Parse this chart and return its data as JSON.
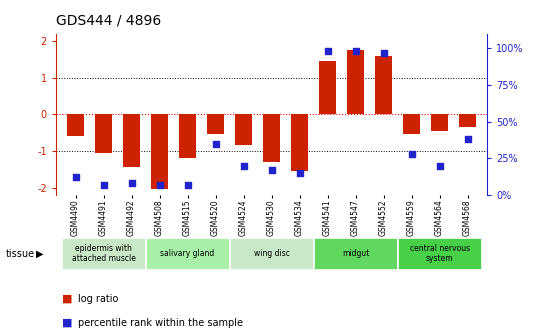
{
  "title": "GDS444 / 4896",
  "categories": [
    "GSM4490",
    "GSM4491",
    "GSM4492",
    "GSM4508",
    "GSM4515",
    "GSM4520",
    "GSM4524",
    "GSM4530",
    "GSM4534",
    "GSM4541",
    "GSM4547",
    "GSM4552",
    "GSM4559",
    "GSM4564",
    "GSM4568"
  ],
  "log_ratio": [
    -0.6,
    -1.05,
    -1.45,
    -2.05,
    -1.2,
    -0.55,
    -0.85,
    -1.3,
    -1.55,
    1.45,
    1.75,
    1.6,
    -0.55,
    -0.45,
    -0.35
  ],
  "percentile": [
    12,
    7,
    8,
    7,
    7,
    35,
    20,
    17,
    15,
    98,
    98,
    97,
    28,
    20,
    38
  ],
  "tissue_groups": [
    {
      "label": "epidermis with\nattached muscle",
      "start": 0,
      "end": 2,
      "color": "#c8e8c8"
    },
    {
      "label": "salivary gland",
      "start": 3,
      "end": 5,
      "color": "#a8f0a8"
    },
    {
      "label": "wing disc",
      "start": 6,
      "end": 8,
      "color": "#c8e8c8"
    },
    {
      "label": "midgut",
      "start": 9,
      "end": 11,
      "color": "#60d860"
    },
    {
      "label": "central nervous\nsystem",
      "start": 12,
      "end": 14,
      "color": "#48d048"
    }
  ],
  "bar_color": "#cc2200",
  "dot_color": "#2222cc",
  "ylim_left": [
    -2.2,
    2.2
  ],
  "ylim_right": [
    0,
    110
  ],
  "yticks_left": [
    -2,
    -1,
    0,
    1,
    2
  ],
  "yticks_right": [
    0,
    25,
    50,
    75,
    100
  ],
  "ytick_labels_right": [
    "0%",
    "25%",
    "50%",
    "75%",
    "100%"
  ],
  "legend_log_ratio": "log ratio",
  "legend_percentile": "percentile rank within the sample",
  "background_color": "#ffffff"
}
